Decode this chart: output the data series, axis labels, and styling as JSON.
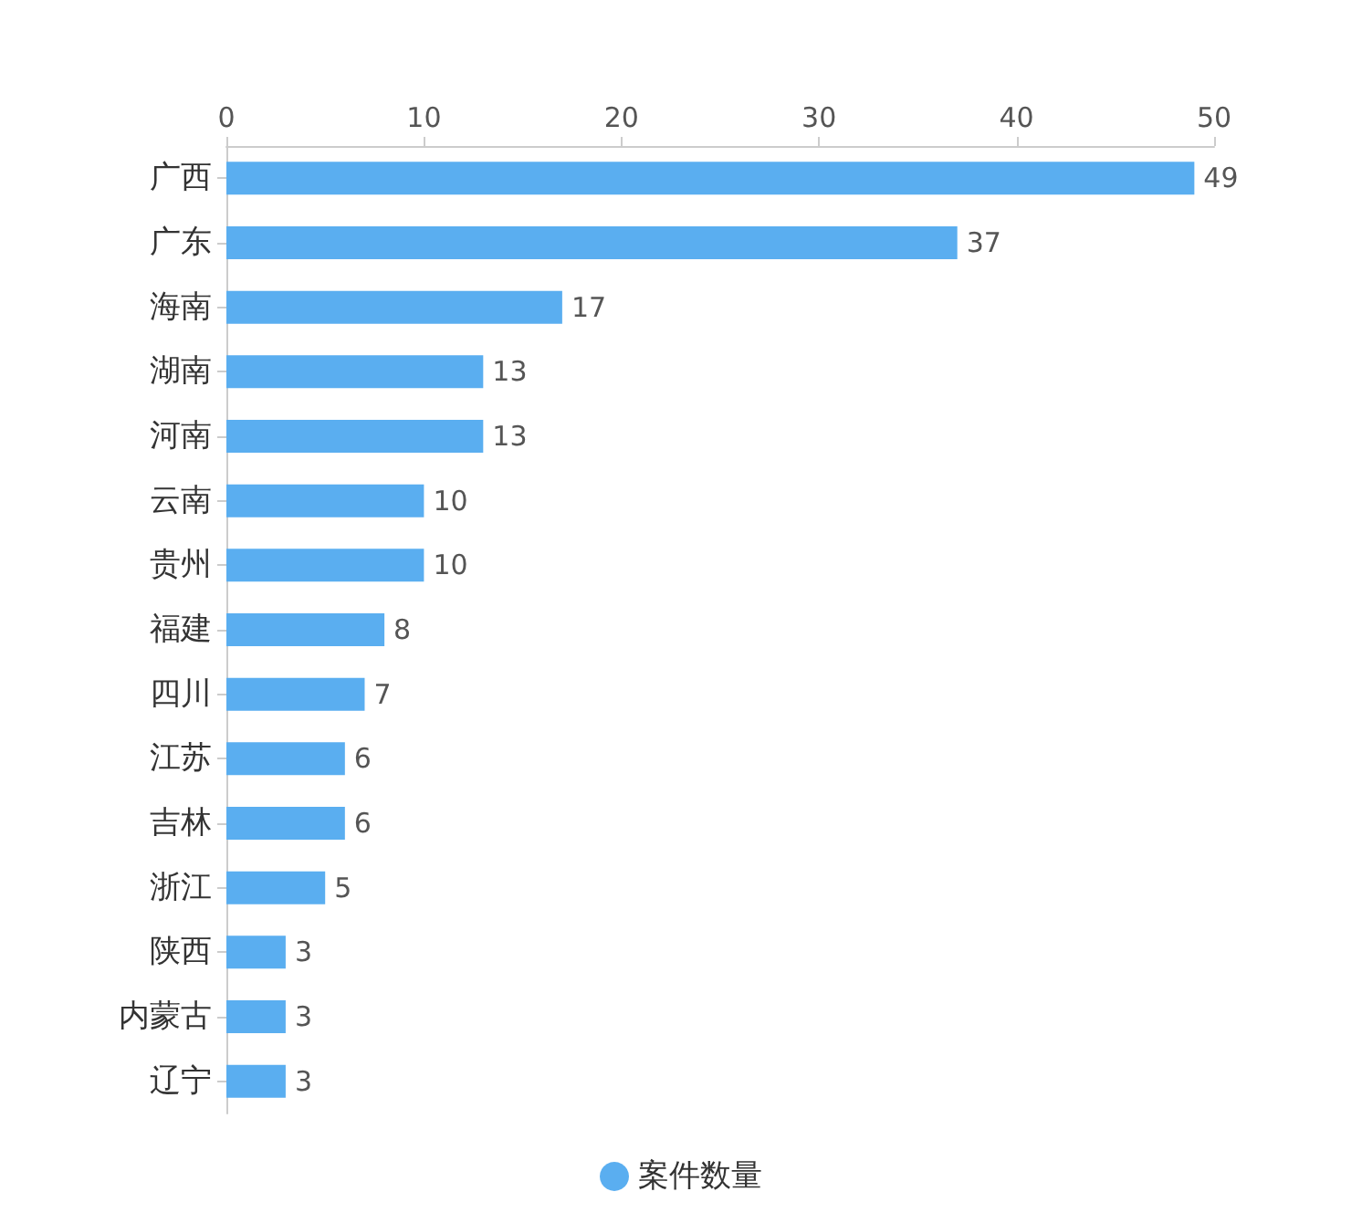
{
  "chart_data": {
    "type": "bar",
    "orientation": "horizontal",
    "categories": [
      "广西",
      "广东",
      "海南",
      "湖南",
      "河南",
      "云南",
      "贵州",
      "福建",
      "四川",
      "江苏",
      "吉林",
      "浙江",
      "陕西",
      "内蒙古",
      "辽宁"
    ],
    "series": [
      {
        "name": "案件数量",
        "color": "#5aaef0",
        "values": [
          49,
          37,
          17,
          13,
          13,
          10,
          10,
          8,
          7,
          6,
          6,
          5,
          3,
          3,
          3
        ]
      }
    ],
    "xlim": [
      0,
      50
    ],
    "xticks": [
      0,
      10,
      20,
      30,
      40,
      50
    ],
    "data_labels": true,
    "grid": false,
    "legend": "bottom"
  }
}
